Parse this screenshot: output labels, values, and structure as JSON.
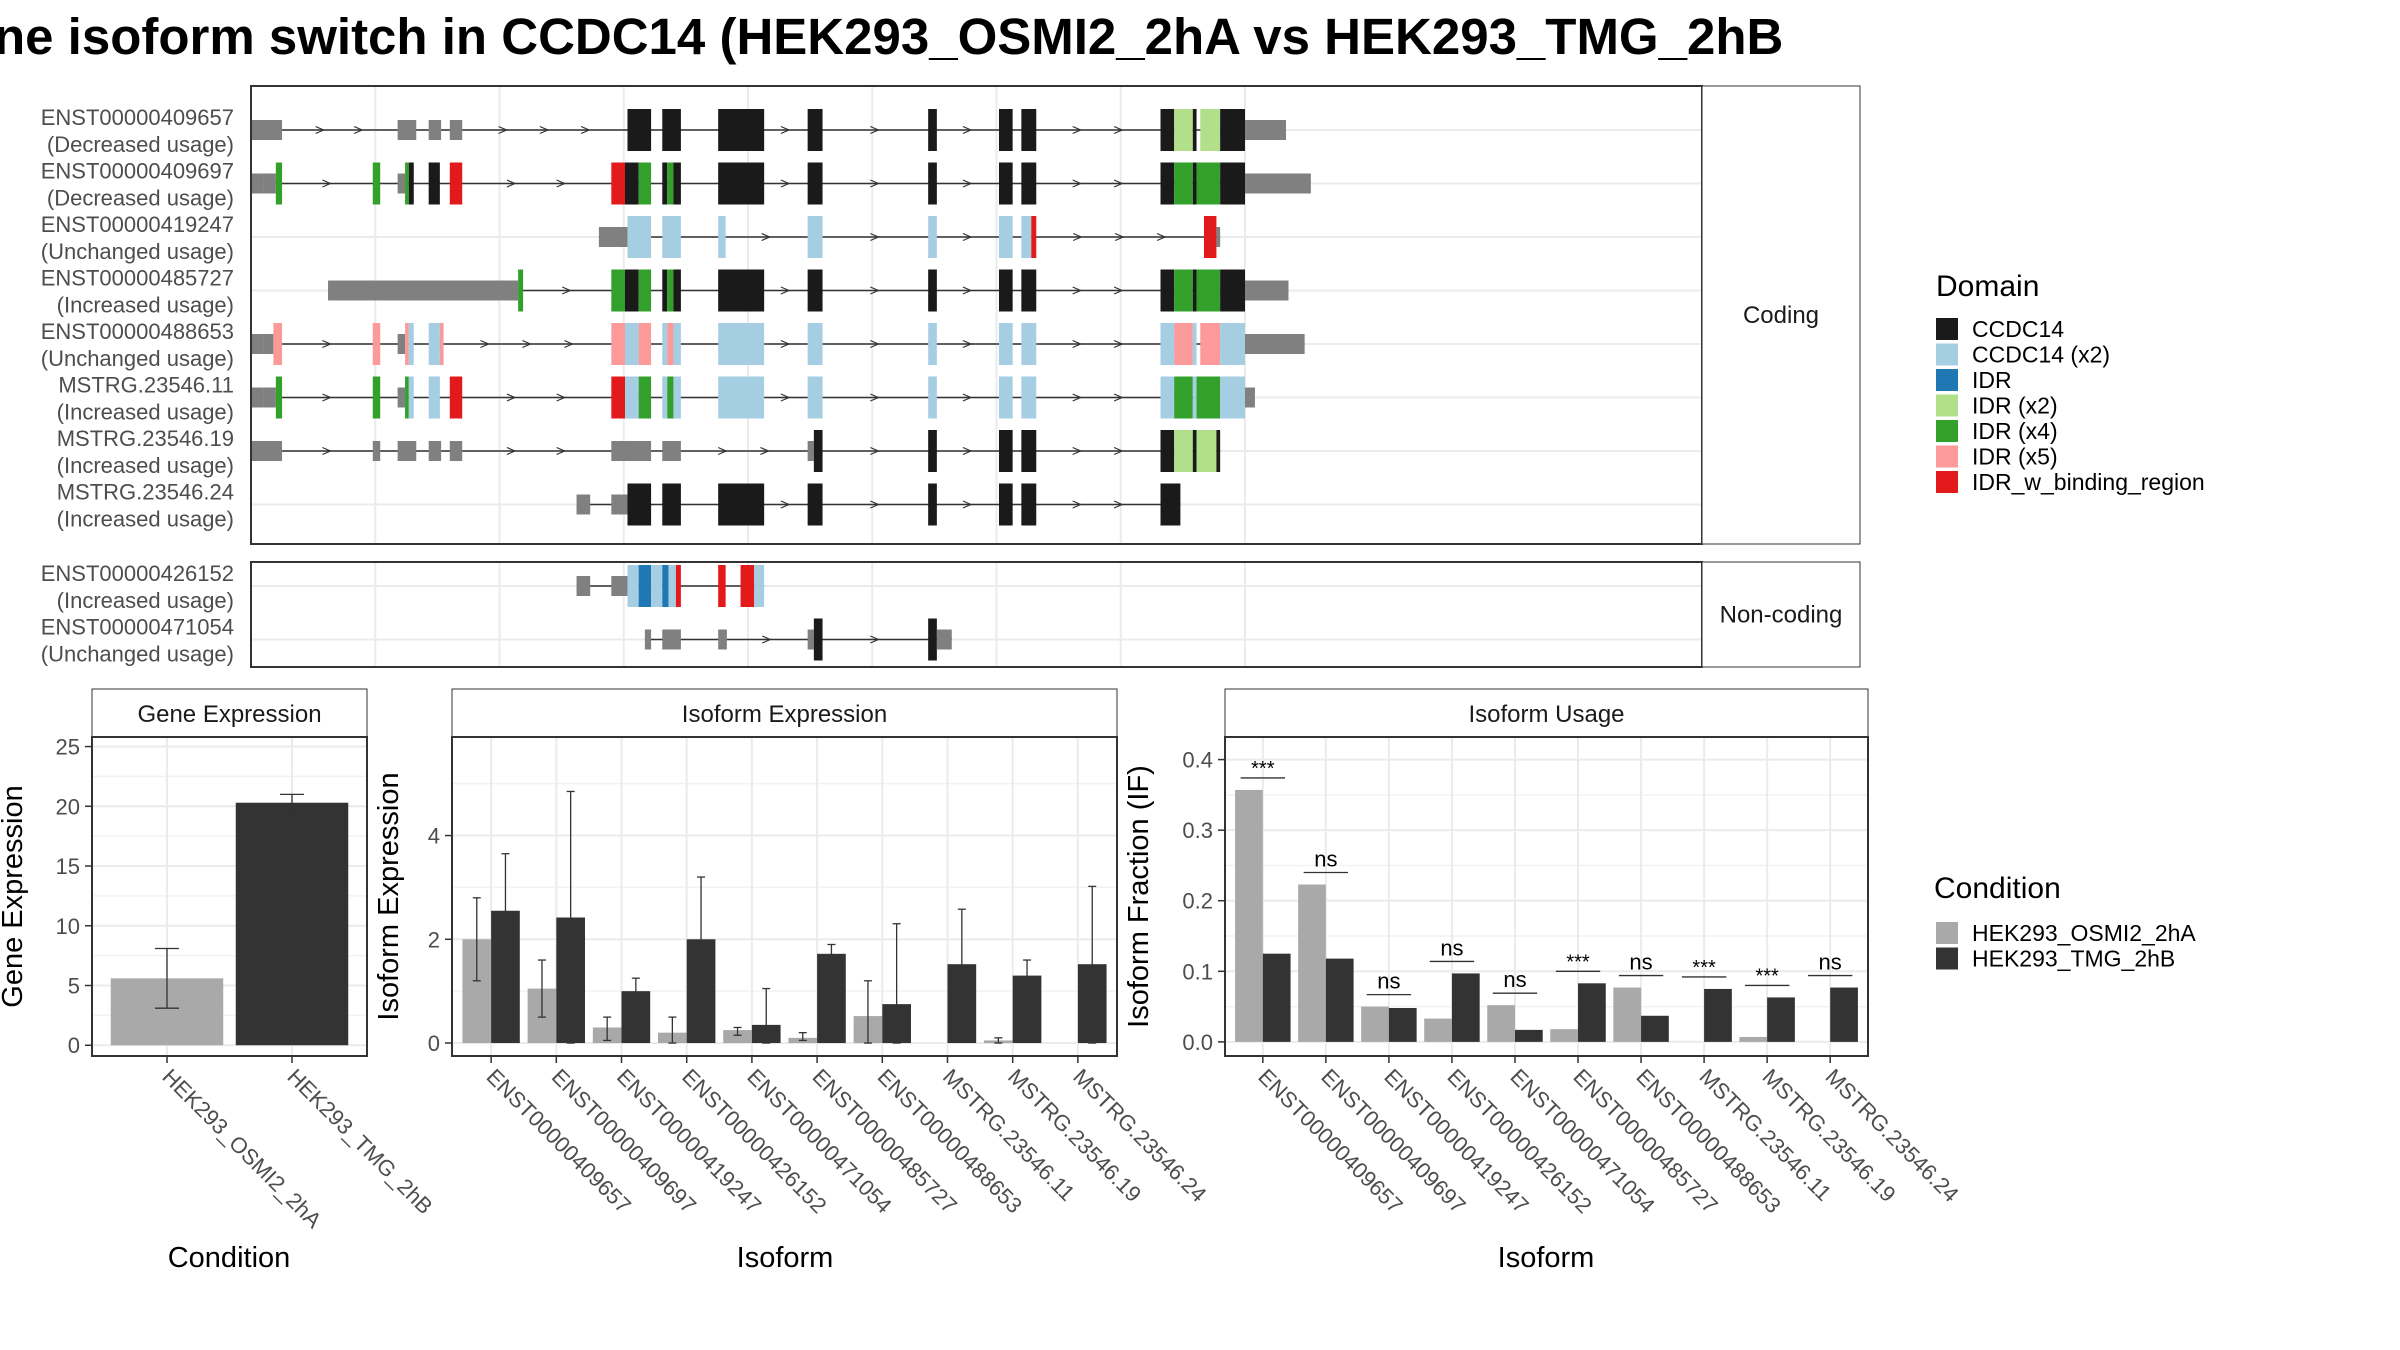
{
  "title": "ne isoform switch in CCDC14 (HEK293_OSMI2_2hA vs HEK293_TMG_2hB",
  "colors": {
    "CCDC14": "#1a1a1a",
    "CCDC14 (x2)": "#a6cee3",
    "IDR": "#1f78b4",
    "IDR (x2)": "#b2df8a",
    "IDR (x4)": "#33a02c",
    "IDR (x5)": "#fb9a99",
    "IDR_w_binding_region": "#e31a1c",
    "utr": "#808080",
    "condA": "#a9a9a9",
    "condB": "#333333"
  },
  "facets": {
    "coding": "Coding",
    "noncoding": "Non-coding"
  },
  "domain_legend": {
    "title": "Domain",
    "items": [
      "CCDC14",
      "CCDC14 (x2)",
      "IDR",
      "IDR (x2)",
      "IDR (x4)",
      "IDR (x5)",
      "IDR_w_binding_region"
    ]
  },
  "condition_legend": {
    "title": "Condition",
    "items": [
      "HEK293_OSMI2_2hA",
      "HEK293_TMG_2hB"
    ]
  },
  "isoforms": [
    {
      "id": "ENST00000409657",
      "usage": "(Decreased usage)",
      "group": "coding",
      "line": [
        200,
        1000
      ],
      "parts": [
        [
          200,
          225,
          "utr"
        ],
        [
          318,
          333,
          "utr"
        ],
        [
          343,
          353,
          "utr"
        ],
        [
          360,
          370,
          "utr"
        ],
        [
          503,
          522,
          "CCDC14"
        ],
        [
          531,
          546,
          "CCDC14"
        ],
        [
          576,
          613,
          "CCDC14"
        ],
        [
          648,
          660,
          "CCDC14"
        ],
        [
          745,
          752,
          "CCDC14"
        ],
        [
          802,
          813,
          "CCDC14"
        ],
        [
          820,
          832,
          "CCDC14"
        ],
        [
          932,
          943,
          "CCDC14"
        ],
        [
          943,
          958,
          "IDR (x2)"
        ],
        [
          958,
          961,
          "CCDC14"
        ],
        [
          964,
          980,
          "IDR (x2)"
        ],
        [
          980,
          1000,
          "CCDC14"
        ],
        [
          1000,
          1033,
          "utr"
        ]
      ]
    },
    {
      "id": "ENST00000409697",
      "usage": "(Decreased usage)",
      "group": "coding",
      "line": [
        200,
        1000
      ],
      "parts": [
        [
          200,
          210,
          "utr"
        ],
        [
          210,
          220,
          "utr"
        ],
        [
          220,
          225,
          "IDR (x4)"
        ],
        [
          298,
          304,
          "IDR (x4)"
        ],
        [
          318,
          324,
          "utr"
        ],
        [
          324,
          327,
          "IDR (x4)"
        ],
        [
          327,
          331,
          "CCDC14"
        ],
        [
          343,
          352,
          "CCDC14"
        ],
        [
          360,
          370,
          "IDR_w_binding_region"
        ],
        [
          490,
          501,
          "IDR_w_binding_region"
        ],
        [
          501,
          512,
          "CCDC14"
        ],
        [
          512,
          522,
          "IDR (x4)"
        ],
        [
          531,
          535,
          "CCDC14"
        ],
        [
          535,
          540,
          "IDR (x4)"
        ],
        [
          540,
          546,
          "CCDC14"
        ],
        [
          576,
          613,
          "CCDC14"
        ],
        [
          648,
          660,
          "CCDC14"
        ],
        [
          745,
          752,
          "CCDC14"
        ],
        [
          802,
          813,
          "CCDC14"
        ],
        [
          820,
          832,
          "CCDC14"
        ],
        [
          932,
          943,
          "CCDC14"
        ],
        [
          943,
          958,
          "IDR (x4)"
        ],
        [
          958,
          961,
          "CCDC14"
        ],
        [
          961,
          980,
          "IDR (x4)"
        ],
        [
          980,
          1000,
          "CCDC14"
        ],
        [
          1000,
          1053,
          "utr"
        ]
      ]
    },
    {
      "id": "ENST00000419247",
      "usage": "(Unchanged usage)",
      "group": "coding",
      "line": [
        480,
        980
      ],
      "parts": [
        [
          480,
          503,
          "utr"
        ],
        [
          503,
          522,
          "CCDC14 (x2)"
        ],
        [
          531,
          546,
          "CCDC14 (x2)"
        ],
        [
          576,
          582,
          "CCDC14 (x2)"
        ],
        [
          648,
          660,
          "CCDC14 (x2)"
        ],
        [
          745,
          752,
          "CCDC14 (x2)"
        ],
        [
          802,
          813,
          "CCDC14 (x2)"
        ],
        [
          820,
          828,
          "CCDC14 (x2)"
        ],
        [
          828,
          832,
          "IDR_w_binding_region"
        ],
        [
          967,
          977,
          "IDR_w_binding_region"
        ],
        [
          977,
          980,
          "utr"
        ]
      ]
    },
    {
      "id": "ENST00000485727",
      "usage": "(Increased usage)",
      "group": "coding",
      "line": [
        262,
        1000
      ],
      "parts": [
        [
          262,
          415,
          "utr"
        ],
        [
          415,
          419,
          "IDR (x4)"
        ],
        [
          490,
          501,
          "IDR (x4)"
        ],
        [
          501,
          512,
          "CCDC14"
        ],
        [
          512,
          522,
          "IDR (x4)"
        ],
        [
          531,
          535,
          "CCDC14"
        ],
        [
          535,
          540,
          "IDR (x4)"
        ],
        [
          540,
          546,
          "CCDC14"
        ],
        [
          576,
          613,
          "CCDC14"
        ],
        [
          648,
          660,
          "CCDC14"
        ],
        [
          745,
          752,
          "CCDC14"
        ],
        [
          802,
          813,
          "CCDC14"
        ],
        [
          820,
          832,
          "CCDC14"
        ],
        [
          932,
          943,
          "CCDC14"
        ],
        [
          943,
          958,
          "IDR (x4)"
        ],
        [
          958,
          961,
          "CCDC14"
        ],
        [
          961,
          980,
          "IDR (x4)"
        ],
        [
          980,
          1000,
          "CCDC14"
        ],
        [
          1000,
          1035,
          "utr"
        ]
      ]
    },
    {
      "id": "ENST00000488653",
      "usage": "(Unchanged usage)",
      "group": "coding",
      "line": [
        200,
        1000
      ],
      "parts": [
        [
          200,
          210,
          "utr"
        ],
        [
          210,
          218,
          "utr"
        ],
        [
          218,
          225,
          "IDR (x5)"
        ],
        [
          298,
          304,
          "IDR (x5)"
        ],
        [
          318,
          324,
          "utr"
        ],
        [
          324,
          327,
          "IDR (x5)"
        ],
        [
          327,
          331,
          "CCDC14 (x2)"
        ],
        [
          343,
          352,
          "CCDC14 (x2)"
        ],
        [
          352,
          355,
          "IDR (x5)"
        ],
        [
          490,
          501,
          "IDR (x5)"
        ],
        [
          501,
          512,
          "CCDC14 (x2)"
        ],
        [
          512,
          522,
          "IDR (x5)"
        ],
        [
          531,
          535,
          "CCDC14 (x2)"
        ],
        [
          535,
          540,
          "IDR (x5)"
        ],
        [
          540,
          546,
          "CCDC14 (x2)"
        ],
        [
          576,
          613,
          "CCDC14 (x2)"
        ],
        [
          648,
          660,
          "CCDC14 (x2)"
        ],
        [
          745,
          752,
          "CCDC14 (x2)"
        ],
        [
          802,
          813,
          "CCDC14 (x2)"
        ],
        [
          820,
          832,
          "CCDC14 (x2)"
        ],
        [
          932,
          943,
          "CCDC14 (x2)"
        ],
        [
          943,
          958,
          "IDR (x5)"
        ],
        [
          958,
          961,
          "CCDC14 (x2)"
        ],
        [
          964,
          980,
          "IDR (x5)"
        ],
        [
          980,
          1000,
          "CCDC14 (x2)"
        ],
        [
          1000,
          1048,
          "utr"
        ]
      ]
    },
    {
      "id": "MSTRG.23546.11",
      "usage": "(Increased usage)",
      "group": "coding",
      "line": [
        200,
        1000
      ],
      "parts": [
        [
          200,
          210,
          "utr"
        ],
        [
          210,
          220,
          "utr"
        ],
        [
          220,
          225,
          "IDR (x4)"
        ],
        [
          298,
          304,
          "IDR (x4)"
        ],
        [
          318,
          324,
          "utr"
        ],
        [
          324,
          327,
          "IDR (x4)"
        ],
        [
          327,
          331,
          "CCDC14 (x2)"
        ],
        [
          343,
          352,
          "CCDC14 (x2)"
        ],
        [
          360,
          370,
          "IDR_w_binding_region"
        ],
        [
          490,
          501,
          "IDR_w_binding_region"
        ],
        [
          501,
          512,
          "CCDC14 (x2)"
        ],
        [
          512,
          522,
          "IDR (x4)"
        ],
        [
          531,
          535,
          "CCDC14 (x2)"
        ],
        [
          535,
          540,
          "IDR (x4)"
        ],
        [
          540,
          546,
          "CCDC14 (x2)"
        ],
        [
          576,
          613,
          "CCDC14 (x2)"
        ],
        [
          648,
          660,
          "CCDC14 (x2)"
        ],
        [
          745,
          752,
          "CCDC14 (x2)"
        ],
        [
          802,
          813,
          "CCDC14 (x2)"
        ],
        [
          820,
          832,
          "CCDC14 (x2)"
        ],
        [
          932,
          943,
          "CCDC14 (x2)"
        ],
        [
          943,
          958,
          "IDR (x4)"
        ],
        [
          958,
          961,
          "CCDC14 (x2)"
        ],
        [
          961,
          980,
          "IDR (x4)"
        ],
        [
          980,
          1000,
          "CCDC14 (x2)"
        ],
        [
          1000,
          1008,
          "utr"
        ]
      ]
    },
    {
      "id": "MSTRG.23546.19",
      "usage": "(Increased usage)",
      "group": "coding",
      "line": [
        200,
        980
      ],
      "parts": [
        [
          200,
          225,
          "utr"
        ],
        [
          298,
          304,
          "utr"
        ],
        [
          318,
          333,
          "utr"
        ],
        [
          343,
          353,
          "utr"
        ],
        [
          360,
          370,
          "utr"
        ],
        [
          490,
          522,
          "utr"
        ],
        [
          531,
          546,
          "utr"
        ],
        [
          648,
          653,
          "utr"
        ],
        [
          653,
          660,
          "CCDC14"
        ],
        [
          745,
          752,
          "CCDC14"
        ],
        [
          802,
          813,
          "CCDC14"
        ],
        [
          820,
          832,
          "CCDC14"
        ],
        [
          932,
          943,
          "CCDC14"
        ],
        [
          943,
          958,
          "IDR (x2)"
        ],
        [
          958,
          961,
          "CCDC14"
        ],
        [
          961,
          977,
          "IDR (x2)"
        ],
        [
          977,
          980,
          "CCDC14"
        ]
      ]
    },
    {
      "id": "MSTRG.23546.24",
      "usage": "(Increased usage)",
      "group": "coding",
      "line": [
        462,
        948
      ],
      "parts": [
        [
          462,
          473,
          "utr"
        ],
        [
          490,
          503,
          "utr"
        ],
        [
          503,
          522,
          "CCDC14"
        ],
        [
          531,
          546,
          "CCDC14"
        ],
        [
          576,
          613,
          "CCDC14"
        ],
        [
          648,
          660,
          "CCDC14"
        ],
        [
          745,
          752,
          "CCDC14"
        ],
        [
          802,
          813,
          "CCDC14"
        ],
        [
          820,
          832,
          "CCDC14"
        ],
        [
          932,
          948,
          "CCDC14"
        ]
      ]
    },
    {
      "id": "ENST00000426152",
      "usage": "(Increased usage)",
      "group": "noncoding",
      "line": [
        462,
        613
      ],
      "parts": [
        [
          462,
          473,
          "utr"
        ],
        [
          490,
          503,
          "utr"
        ],
        [
          503,
          512,
          "CCDC14 (x2)"
        ],
        [
          512,
          522,
          "IDR"
        ],
        [
          522,
          531,
          "CCDC14 (x2)"
        ],
        [
          531,
          536,
          "IDR"
        ],
        [
          536,
          542,
          "CCDC14 (x2)"
        ],
        [
          542,
          546,
          "IDR_w_binding_region"
        ],
        [
          576,
          582,
          "IDR_w_binding_region"
        ],
        [
          594,
          605,
          "IDR_w_binding_region"
        ],
        [
          605,
          613,
          "CCDC14 (x2)"
        ]
      ]
    },
    {
      "id": "ENST00000471054",
      "usage": "(Unchanged usage)",
      "group": "noncoding",
      "line": [
        517,
        764
      ],
      "parts": [
        [
          517,
          522,
          "utr"
        ],
        [
          531,
          546,
          "utr"
        ],
        [
          576,
          583,
          "utr"
        ],
        [
          648,
          653,
          "utr"
        ],
        [
          653,
          660,
          "CCDC14"
        ],
        [
          745,
          752,
          "CCDC14"
        ],
        [
          752,
          764,
          "utr"
        ]
      ]
    }
  ],
  "structure_axis": {
    "breaks": [
      200,
      300,
      400,
      500,
      600,
      700,
      800,
      900,
      1000
    ]
  },
  "chart_data": [
    {
      "type": "bar",
      "title": "Gene Expression",
      "xlabel": "Condition",
      "ylabel": "Gene Expression",
      "categories": [
        "HEK293_OSMI2_2hA",
        "HEK293_TMG_2hB"
      ],
      "values": [
        5.6,
        20.3
      ],
      "error_low": [
        3.1,
        19.6
      ],
      "error_high": [
        8.1,
        21.0
      ],
      "ylim": [
        -0.9,
        25.8
      ],
      "yticks": [
        0,
        5,
        10,
        15,
        20,
        25
      ],
      "grid": true
    },
    {
      "type": "bar",
      "title": "Isoform Expression",
      "xlabel": "Isoform",
      "ylabel": "Isoform Expression",
      "categories": [
        "ENST00000409657",
        "ENST00000409697",
        "ENST00000419247",
        "ENST00000426152",
        "ENST00000471054",
        "ENST00000485727",
        "ENST00000488653",
        "MSTRG.23546.11",
        "MSTRG.23546.19",
        "MSTRG.23546.24"
      ],
      "series": [
        {
          "name": "HEK293_OSMI2_2hA",
          "values": [
            2.0,
            1.05,
            0.3,
            0.2,
            0.25,
            0.1,
            0.52,
            0.0,
            0.05,
            0.0
          ],
          "error_low": [
            1.2,
            0.5,
            0.05,
            0.0,
            0.15,
            0.05,
            0.0,
            0.0,
            0.0,
            0.0
          ],
          "error_high": [
            2.8,
            1.6,
            0.5,
            0.5,
            0.3,
            0.2,
            1.2,
            0.0,
            0.1,
            0.0
          ]
        },
        {
          "name": "HEK293_TMG_2hB",
          "values": [
            2.55,
            2.42,
            1.0,
            2.0,
            0.35,
            1.72,
            0.75,
            1.52,
            1.3,
            1.52
          ],
          "error_low": [
            1.5,
            0.0,
            0.75,
            0.8,
            0.0,
            1.55,
            0.0,
            0.5,
            1.0,
            0.0
          ],
          "error_high": [
            3.65,
            4.85,
            1.25,
            3.2,
            1.05,
            1.9,
            2.3,
            2.58,
            1.6,
            3.02
          ]
        }
      ],
      "ylim": [
        -0.25,
        5.9
      ],
      "yticks": [
        0,
        2,
        4
      ],
      "grid": true
    },
    {
      "type": "bar",
      "title": "Isoform Usage",
      "xlabel": "Isoform",
      "ylabel": "Isoform Fraction (IF)",
      "categories": [
        "ENST00000409657",
        "ENST00000409697",
        "ENST00000419247",
        "ENST00000426152",
        "ENST00000471054",
        "ENST00000485727",
        "ENST00000488653",
        "MSTRG.23546.11",
        "MSTRG.23546.19",
        "MSTRG.23546.24"
      ],
      "series": [
        {
          "name": "HEK293_OSMI2_2hA",
          "values": [
            0.357,
            0.223,
            0.05,
            0.033,
            0.052,
            0.018,
            0.077,
            0.0,
            0.007,
            0.0
          ]
        },
        {
          "name": "HEK293_TMG_2hB",
          "values": [
            0.125,
            0.118,
            0.048,
            0.097,
            0.017,
            0.083,
            0.037,
            0.075,
            0.063,
            0.077
          ]
        }
      ],
      "significance": [
        "***",
        "ns",
        "ns",
        "ns",
        "ns",
        "***",
        "ns",
        "***",
        "***",
        "ns"
      ],
      "ylim": [
        -0.02,
        0.432
      ],
      "yticks": [
        0.0,
        0.1,
        0.2,
        0.3,
        0.4
      ],
      "ytick_labels": [
        "0.0",
        "0.1",
        "0.2",
        "0.3",
        "0.4"
      ],
      "grid": true
    }
  ]
}
